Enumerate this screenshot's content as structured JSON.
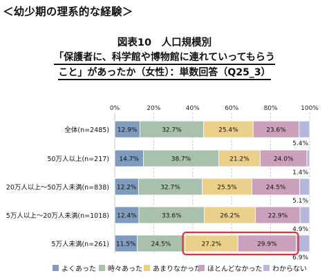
{
  "heading": "＜幼少期の理系的な経験＞",
  "title_lines": [
    "図表10　人口規模別",
    "「保護者に、科学館や博物館に連れていってもらう",
    "こと」があったか（女性）：単数回答（Q25_3）"
  ],
  "chart_data": {
    "type": "bar",
    "orientation": "horizontal",
    "stacked": true,
    "xlim": [
      0,
      100
    ],
    "x_ticks": [
      "0%",
      "20%",
      "40%",
      "60%",
      "80%",
      "100%"
    ],
    "categories": [
      "全体(n=2485)",
      "50万人以上(n=217)",
      "20万人以上～50万人未満(n=838)",
      "5万人以上～20万人未満(n=1018)",
      "5万人未満(n=261)"
    ],
    "series": [
      {
        "name": "よくあった",
        "color": "#7f9cbf",
        "values": [
          12.9,
          14.7,
          12.2,
          12.4,
          11.5
        ]
      },
      {
        "name": "時々あった",
        "color": "#a9c1ac",
        "values": [
          32.7,
          38.7,
          32.7,
          33.6,
          24.5
        ]
      },
      {
        "name": "あまりなかった",
        "color": "#ead08a",
        "values": [
          25.4,
          21.2,
          25.5,
          26.2,
          27.2
        ]
      },
      {
        "name": "ほとんどなかった",
        "color": "#caa0ba",
        "values": [
          23.6,
          24.0,
          24.5,
          22.9,
          29.9
        ]
      },
      {
        "name": "わからない",
        "color": "#b5b8dd",
        "values": [
          5.4,
          1.4,
          5.1,
          4.9,
          6.9
        ]
      }
    ],
    "data_labels": [
      [
        "12.9%",
        "32.7%",
        "25.4%",
        "23.6%",
        "5.4%"
      ],
      [
        "14.7%",
        "38.7%",
        "21.2%",
        "24.0%",
        "1.4%"
      ],
      [
        "12.2%",
        "32.7%",
        "25.5%",
        "24.5%",
        "5.1%"
      ],
      [
        "12.4%",
        "33.6%",
        "26.2%",
        "22.9%",
        "4.9%"
      ],
      [
        "11.5%",
        "24.5%",
        "27.2%",
        "29.9%",
        "6.9%"
      ]
    ],
    "highlight": {
      "row": 4,
      "series": [
        2,
        3
      ],
      "color": "#e0303a"
    },
    "grid": true,
    "legend_position": "bottom"
  }
}
